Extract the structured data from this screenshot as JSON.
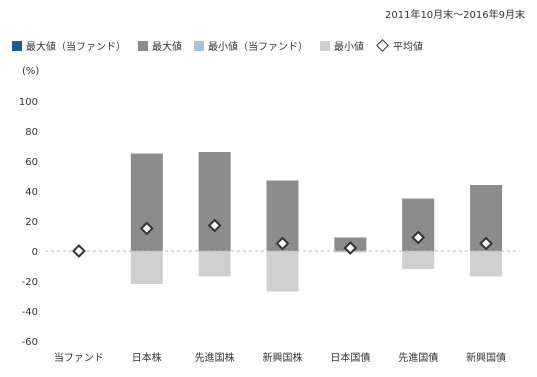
{
  "chart_data": {
    "type": "bar",
    "period": "2011年10月末～2016年9月末",
    "unit_label": "(%)",
    "categories": [
      "当ファンド",
      "日本株",
      "先進国株",
      "新興国株",
      "日本国債",
      "先進国債",
      "新興国債"
    ],
    "legend": [
      {
        "name": "最大値（当ファンド）",
        "color": "#1f5a8c",
        "shape": "square"
      },
      {
        "name": "最大値",
        "color": "#8c8c8c",
        "shape": "square"
      },
      {
        "name": "最小値（当ファンド）",
        "color": "#a8c0d8",
        "shape": "square"
      },
      {
        "name": "最小値",
        "color": "#cfcfcf",
        "shape": "square"
      },
      {
        "name": "平均値",
        "color": "#333333",
        "shape": "diamond"
      }
    ],
    "series": [
      {
        "name": "最大値",
        "values": [
          0,
          65,
          66,
          47,
          9,
          35,
          44
        ],
        "color": "#8c8c8c"
      },
      {
        "name": "最小値",
        "values": [
          0,
          -22,
          -17,
          -27,
          -1,
          -12,
          -17
        ],
        "color": "#cfcfcf"
      },
      {
        "name": "平均値",
        "values": [
          0,
          15,
          17,
          5,
          2,
          9,
          5
        ],
        "color": "#333333"
      }
    ],
    "ylim": [
      -60,
      100
    ],
    "yticks": [
      100,
      80,
      60,
      40,
      20,
      0,
      -20,
      -40,
      -60
    ],
    "grid": false,
    "legend_position": "top"
  }
}
